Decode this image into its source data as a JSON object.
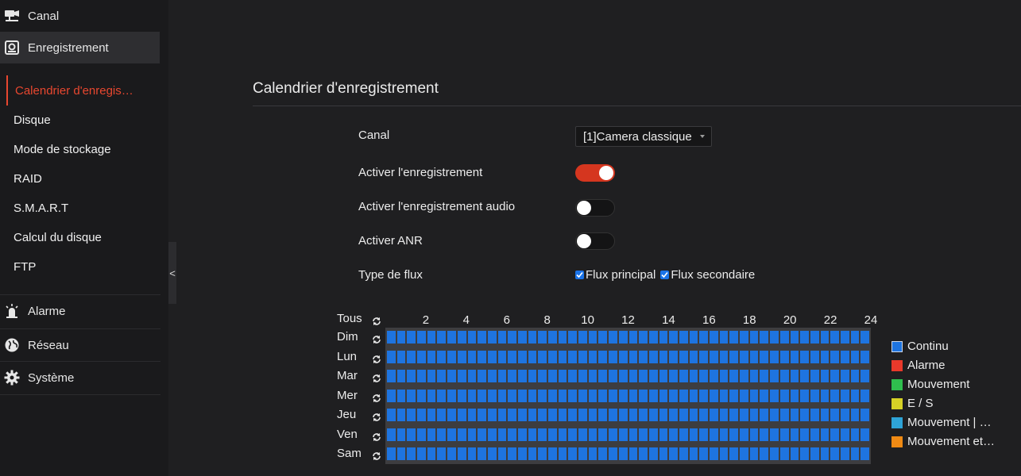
{
  "sidebar": {
    "top_items": [
      {
        "label": "Canal",
        "icon": "camera-icon"
      },
      {
        "label": "Enregistrement",
        "icon": "recorder-icon"
      }
    ],
    "sub_items": [
      {
        "label": "Calendrier d'enregis…"
      },
      {
        "label": "Disque"
      },
      {
        "label": "Mode de stockage"
      },
      {
        "label": "RAID"
      },
      {
        "label": "S.M.A.R.T"
      },
      {
        "label": "Calcul du disque"
      },
      {
        "label": "FTP"
      }
    ],
    "bottom_items": [
      {
        "label": "Alarme",
        "icon": "alarm-icon"
      },
      {
        "label": "Réseau",
        "icon": "globe-icon"
      },
      {
        "label": "Système",
        "icon": "gear-icon"
      }
    ],
    "collapse_label": "<"
  },
  "page": {
    "title": "Calendrier d'enregistrement",
    "canal_label": "Canal",
    "canal_value": "[1]Camera classique",
    "enable_record_label": "Activer l'enregistrement",
    "enable_record": true,
    "enable_audio_label": "Activer l'enregistrement audio",
    "enable_audio": false,
    "enable_anr_label": "Activer ANR",
    "enable_anr": false,
    "stream_type_label": "Type de flux",
    "stream_main_label": "Flux principal",
    "stream_main": true,
    "stream_sub_label": "Flux secondaire",
    "stream_sub": true
  },
  "schedule": {
    "all_label": "Tous",
    "hours": [
      "2",
      "4",
      "6",
      "8",
      "10",
      "12",
      "14",
      "16",
      "18",
      "20",
      "22",
      "24"
    ],
    "days": [
      "Dim",
      "Lun",
      "Mar",
      "Mer",
      "Jeu",
      "Ven",
      "Sam"
    ],
    "cells_per_day": 48,
    "fill_color": "#1e74e0"
  },
  "legend": [
    {
      "label": "Continu",
      "color": "#1e74e0"
    },
    {
      "label": "Alarme",
      "color": "#e8392b"
    },
    {
      "label": "Mouvement",
      "color": "#2fbf4e"
    },
    {
      "label": "E / S",
      "color": "#d6d126"
    },
    {
      "label": "Mouvement | …",
      "color": "#2ea3d6"
    },
    {
      "label": "Mouvement et…",
      "color": "#f08a14"
    }
  ]
}
